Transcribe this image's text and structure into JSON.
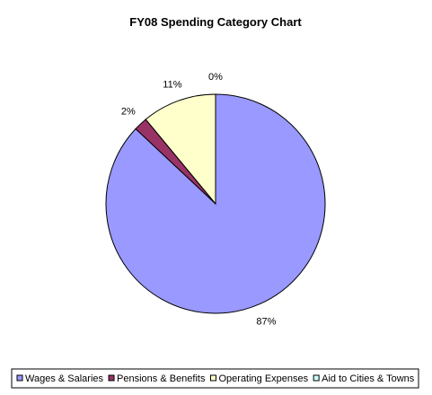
{
  "chart_data": {
    "type": "pie",
    "title": "FY08 Spending Category Chart",
    "slices": [
      {
        "name": "Wages & Salaries",
        "value": 87,
        "label": "87%",
        "color": "#9999ff"
      },
      {
        "name": "Pensions & Benefits",
        "value": 2,
        "label": "2%",
        "color": "#993366"
      },
      {
        "name": "Operating Expenses",
        "value": 11,
        "label": "11%",
        "color": "#ffffcc"
      },
      {
        "name": "Aid to Cities & Towns",
        "value": 0,
        "label": "0%",
        "color": "#ccffff"
      }
    ],
    "legend": {
      "placement": "bottom"
    }
  }
}
